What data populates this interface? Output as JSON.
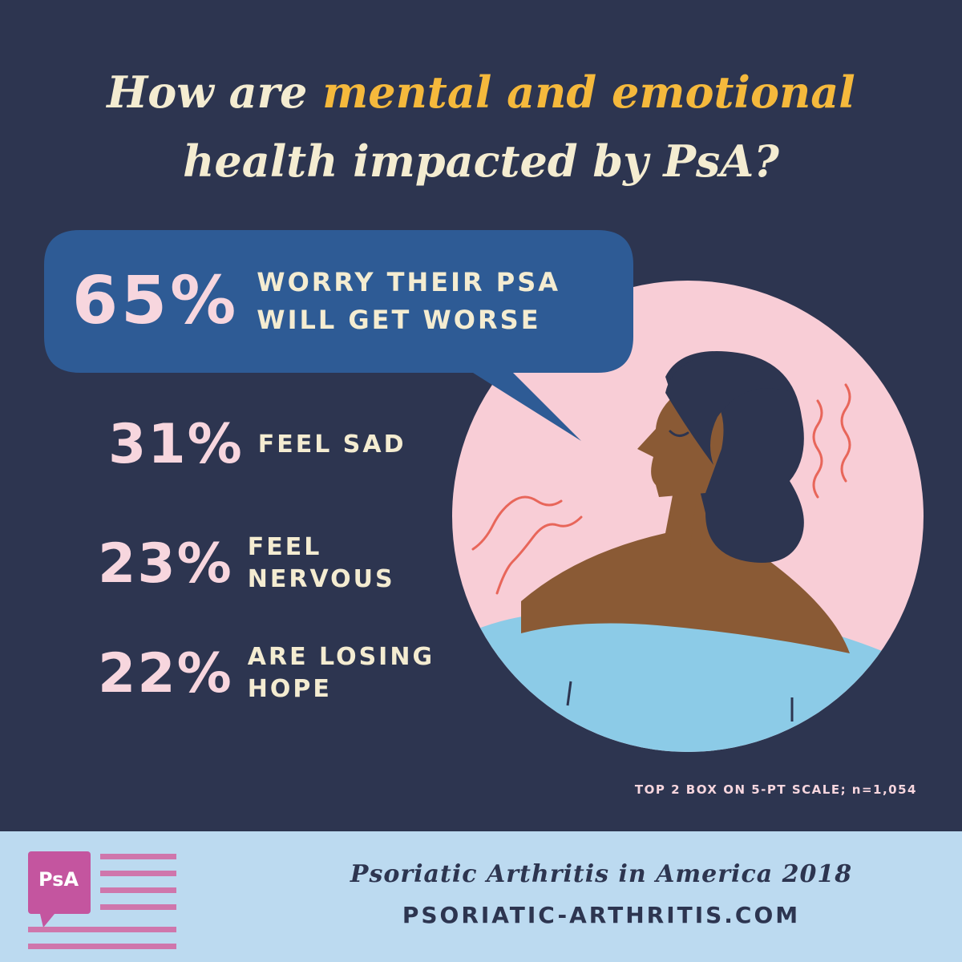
{
  "title": {
    "part1": "How are ",
    "highlight": "mental and emotional",
    "part2": "health impacted by PsA?"
  },
  "lead_stat": {
    "percent": "65%",
    "line1": "WORRY THEIR PSA",
    "line2": "WILL GET WORSE"
  },
  "stats": [
    {
      "percent": "31%",
      "line1": "FEEL SAD",
      "line2": ""
    },
    {
      "percent": "23%",
      "line1": "FEEL",
      "line2": "NERVOUS"
    },
    {
      "percent": "22%",
      "line1": "ARE LOSING",
      "line2": "HOPE"
    }
  ],
  "footnote": "TOP 2 BOX ON 5-PT SCALE; n=1,054",
  "footer": {
    "logo_text": "PsA",
    "line1": "Psoriatic Arthritis in America 2018",
    "line2": "PSORIATIC-ARTHRITIS.COM"
  },
  "colors": {
    "background": "#2d3550",
    "title_cream": "#f4ecd1",
    "title_highlight": "#f5b93c",
    "bubble": "#2e5b95",
    "pink": "#f7d6de",
    "circle_pink": "#f8cdd6",
    "skin": "#8a5a35",
    "hair": "#2d3550",
    "shirt": "#8ccbe7",
    "squiggle": "#e8665a",
    "footer_bg": "#bcdaf0",
    "logo_magenta": "#c4559f",
    "stripe": "#cf76ac"
  },
  "icons": [
    "speech-bubble",
    "woman-portrait-illustration",
    "psa-logo-icon"
  ]
}
